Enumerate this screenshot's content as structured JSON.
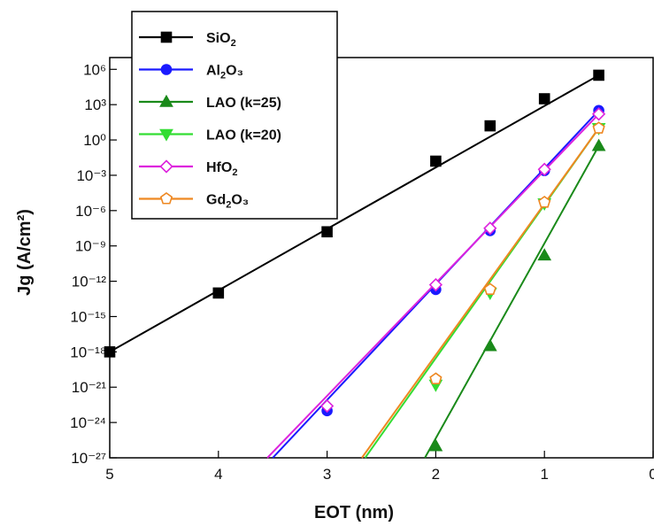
{
  "chart_data": {
    "type": "line",
    "xlabel": "EOT (nm)",
    "ylabel": "Jg (A/cm²)",
    "x_axis": {
      "range": [
        5,
        0
      ],
      "reversed": true,
      "ticks": [
        5,
        4,
        3,
        2,
        1,
        0
      ]
    },
    "y_axis": {
      "scale": "log",
      "range_exp": [
        -27,
        7
      ],
      "tick_exponents": [
        6,
        3,
        0,
        -3,
        -6,
        -9,
        -12,
        -15,
        -18,
        -21,
        -24,
        -27
      ]
    },
    "grid": false,
    "legend_position": "top-left",
    "series": [
      {
        "name": "SiO₂",
        "name_main": "SiO",
        "name_sub": "2",
        "name_tail": "",
        "color": "#000000",
        "marker": "square",
        "marker_fill": "filled",
        "line": [
          [
            5,
            -18
          ],
          [
            0.5,
            5.5
          ]
        ],
        "points": [
          [
            5,
            -18
          ],
          [
            4,
            -13
          ],
          [
            3,
            -7.8
          ],
          [
            2,
            -1.8
          ],
          [
            1.5,
            1.2
          ],
          [
            1,
            3.5
          ],
          [
            0.5,
            5.5
          ]
        ]
      },
      {
        "name": "Al₂O₃",
        "name_main": "Al",
        "name_sub": "2",
        "name_tail": "O₃",
        "color": "#1a1aff",
        "marker": "circle",
        "marker_fill": "filled",
        "line": [
          [
            3.5,
            -27
          ],
          [
            0.5,
            2.5
          ]
        ],
        "points": [
          [
            3,
            -23
          ],
          [
            2,
            -12.7
          ],
          [
            1.5,
            -7.7
          ],
          [
            1,
            -2.6
          ],
          [
            0.5,
            2.5
          ]
        ]
      },
      {
        "name": "LAO (k=25)",
        "name_main": "LAO (k=25)",
        "name_sub": "",
        "name_tail": "",
        "color": "#1a8a1a",
        "marker": "triangle-up",
        "marker_fill": "filled",
        "line": [
          [
            2.1,
            -27
          ],
          [
            0.5,
            -0.5
          ]
        ],
        "points": [
          [
            2,
            -26
          ],
          [
            1.5,
            -17.5
          ],
          [
            1,
            -9.8
          ],
          [
            0.5,
            -0.5
          ]
        ]
      },
      {
        "name": "LAO (k=20)",
        "name_main": "LAO (k=20)",
        "name_sub": "",
        "name_tail": "",
        "color": "#33dd33",
        "marker": "triangle-down",
        "marker_fill": "filled",
        "line": [
          [
            2.65,
            -27
          ],
          [
            0.5,
            1
          ]
        ],
        "points": [
          [
            2,
            -20.8
          ],
          [
            1.5,
            -13
          ],
          [
            1,
            -5.4
          ],
          [
            0.5,
            1
          ]
        ]
      },
      {
        "name": "HfO₂",
        "name_main": "HfO",
        "name_sub": "2",
        "name_tail": "",
        "color": "#dd22dd",
        "marker": "diamond",
        "marker_fill": "open",
        "line": [
          [
            3.55,
            -27
          ],
          [
            0.5,
            2.2
          ]
        ],
        "points": [
          [
            3,
            -22.6
          ],
          [
            2,
            -12.3
          ],
          [
            1.5,
            -7.5
          ],
          [
            1,
            -2.5
          ],
          [
            0.5,
            2.2
          ]
        ]
      },
      {
        "name": "Gd₂O₃",
        "name_main": "Gd",
        "name_sub": "2",
        "name_tail": "O₃",
        "color": "#ee8822",
        "marker": "pentagon",
        "marker_fill": "open",
        "line": [
          [
            2.68,
            -27
          ],
          [
            0.5,
            1
          ]
        ],
        "points": [
          [
            2,
            -20.3
          ],
          [
            1.5,
            -12.7
          ],
          [
            1,
            -5.3
          ],
          [
            0.5,
            1
          ]
        ]
      }
    ]
  }
}
